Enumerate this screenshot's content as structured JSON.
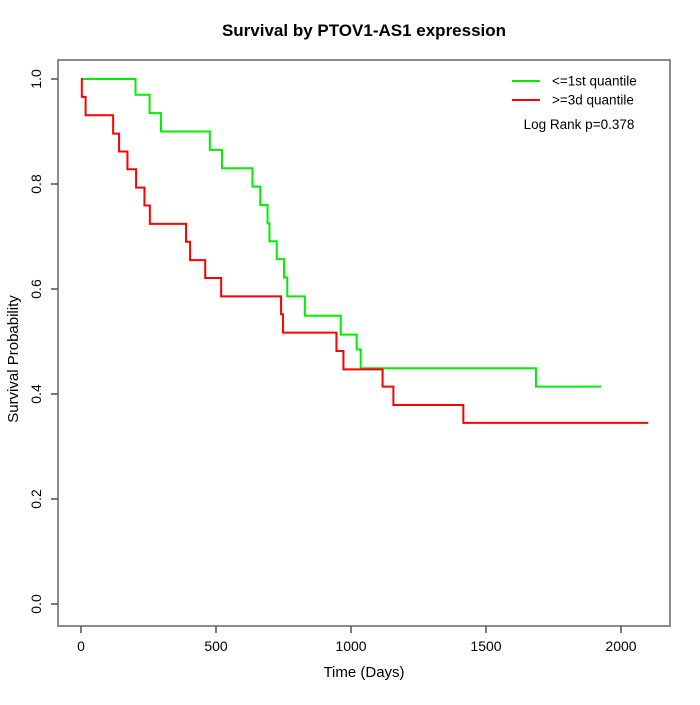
{
  "title": "Survival by PTOV1-AS1 expression",
  "chart_data": {
    "type": "line",
    "subtype": "kaplan-meier-step",
    "title": "Survival by PTOV1-AS1 expression",
    "xlabel": "Time (Days)",
    "ylabel": "Survival Probability",
    "xlim": [
      0,
      2100
    ],
    "ylim": [
      0.0,
      1.0
    ],
    "grid": false,
    "legend_position": "top-right",
    "annotation": "Log Rank p=0.378",
    "x_ticks": [
      {
        "label": "0",
        "value": 0
      },
      {
        "label": "500",
        "value": 500
      },
      {
        "label": "1000",
        "value": 1000
      },
      {
        "label": "1500",
        "value": 1500
      },
      {
        "label": "2000",
        "value": 2000
      }
    ],
    "y_ticks": [
      {
        "label": "0.0",
        "value": 0.0
      },
      {
        "label": "0.2",
        "value": 0.2
      },
      {
        "label": "0.4",
        "value": 0.4
      },
      {
        "label": "0.6",
        "value": 0.6
      },
      {
        "label": "0.8",
        "value": 0.8
      },
      {
        "label": "1.0",
        "value": 1.0
      }
    ],
    "series": [
      {
        "name": "<=1st quantile",
        "color": "#00ee00",
        "end_time": 1926,
        "steps": [
          [
            0,
            1.0
          ],
          [
            202,
            0.97
          ],
          [
            254,
            0.935
          ],
          [
            296,
            0.9
          ],
          [
            477,
            0.865
          ],
          [
            522,
            0.83
          ],
          [
            635,
            0.795
          ],
          [
            664,
            0.76
          ],
          [
            691,
            0.725
          ],
          [
            698,
            0.691
          ],
          [
            725,
            0.657
          ],
          [
            752,
            0.622
          ],
          [
            764,
            0.586
          ],
          [
            829,
            0.549
          ],
          [
            962,
            0.513
          ],
          [
            1021,
            0.485
          ],
          [
            1036,
            0.449
          ],
          [
            1685,
            0.414
          ]
        ]
      },
      {
        "name": ">=3d quantile",
        "color": "#ff0000",
        "end_time": 2101,
        "steps": [
          [
            0,
            1.0
          ],
          [
            3,
            0.966
          ],
          [
            17,
            0.931
          ],
          [
            119,
            0.896
          ],
          [
            141,
            0.862
          ],
          [
            172,
            0.828
          ],
          [
            204,
            0.793
          ],
          [
            235,
            0.759
          ],
          [
            255,
            0.724
          ],
          [
            389,
            0.69
          ],
          [
            404,
            0.655
          ],
          [
            460,
            0.621
          ],
          [
            519,
            0.586
          ],
          [
            741,
            0.552
          ],
          [
            748,
            0.517
          ],
          [
            946,
            0.482
          ],
          [
            972,
            0.447
          ],
          [
            1117,
            0.414
          ],
          [
            1157,
            0.379
          ],
          [
            1416,
            0.345
          ]
        ]
      }
    ]
  }
}
